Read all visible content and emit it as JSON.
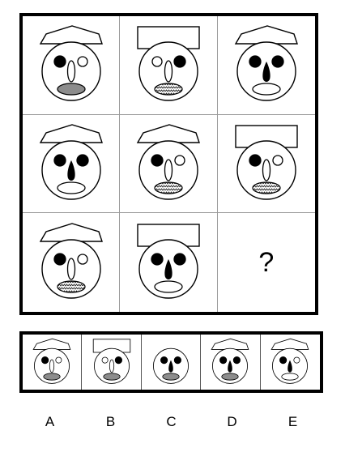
{
  "grid": {
    "question_mark": "?",
    "cells": [
      {
        "hat": "pentagon",
        "eyes": "filled-left",
        "nose": "oval-open",
        "mouth": "grey"
      },
      {
        "hat": "rectangle",
        "eyes": "filled-right",
        "nose": "oval-open",
        "mouth": "hatched"
      },
      {
        "hat": "pentagon",
        "eyes": "both-filled",
        "nose": "teardrop-filled",
        "mouth": "white"
      },
      {
        "hat": "pentagon",
        "eyes": "both-filled",
        "nose": "teardrop-filled",
        "mouth": "white"
      },
      {
        "hat": "pentagon",
        "eyes": "filled-left",
        "nose": "oval-open",
        "mouth": "hatched"
      },
      {
        "hat": "rectangle",
        "eyes": "filled-left",
        "nose": "oval-open",
        "mouth": "hatched"
      },
      {
        "hat": "pentagon",
        "eyes": "filled-left",
        "nose": "oval-open",
        "mouth": "hatched"
      },
      {
        "hat": "rectangle",
        "eyes": "both-filled",
        "nose": "teardrop-filled",
        "mouth": "white"
      },
      null
    ]
  },
  "options": [
    {
      "label": "A",
      "hat": "pentagon",
      "eyes": "filled-left",
      "nose": "oval-open",
      "mouth": "grey"
    },
    {
      "label": "B",
      "hat": "rectangle",
      "eyes": "filled-right",
      "nose": "oval-open",
      "mouth": "grey"
    },
    {
      "label": "C",
      "hat": "none",
      "eyes": "both-filled",
      "nose": "teardrop-filled",
      "mouth": "grey"
    },
    {
      "label": "D",
      "hat": "pentagon",
      "eyes": "both-filled",
      "nose": "teardrop-filled",
      "mouth": "grey"
    },
    {
      "label": "E",
      "hat": "pentagon",
      "eyes": "filled-left",
      "nose": "teardrop-filled",
      "mouth": "white"
    }
  ],
  "colors": {
    "line": "#000000",
    "grey_mouth": "#8c8c8c",
    "grid_divider": "#9a9a9a"
  }
}
